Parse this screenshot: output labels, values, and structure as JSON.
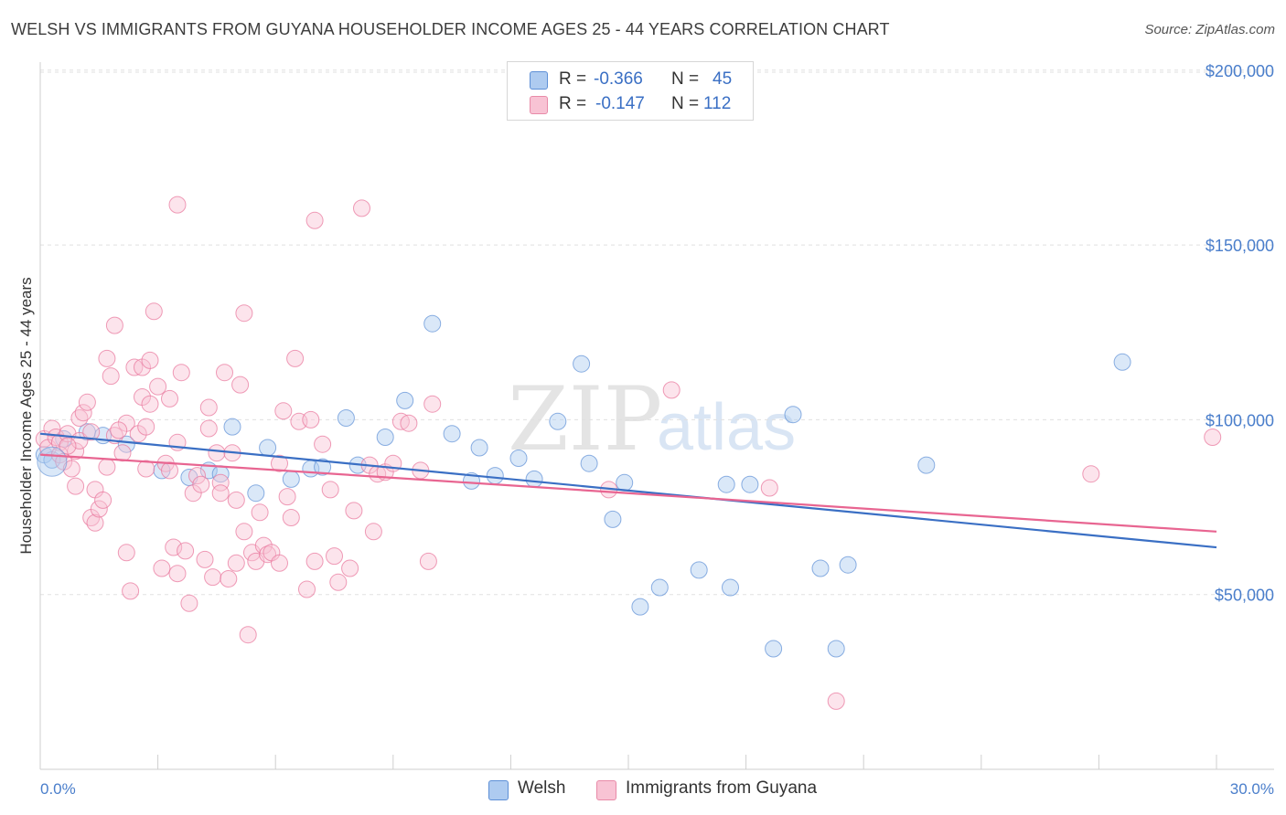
{
  "title": "WELSH VS IMMIGRANTS FROM GUYANA HOUSEHOLDER INCOME AGES 25 - 44 YEARS CORRELATION CHART",
  "source": "Source: ZipAtlas.com",
  "watermark": {
    "zip": "ZIP",
    "atlas": "atlas"
  },
  "legend": {
    "r_label": "R =",
    "n_label": "N =",
    "rows": [
      {
        "r": "-0.366",
        "n": "45",
        "color": "#aecbf0",
        "border": "#5d8fd6"
      },
      {
        "r": "-0.147",
        "n": "112",
        "color": "#f8c3d4",
        "border": "#e88aa8"
      }
    ]
  },
  "bottom_legend": [
    {
      "label": "Welsh",
      "color": "#aecbf0",
      "border": "#5d8fd6"
    },
    {
      "label": "Immigrants from Guyana",
      "color": "#f8c3d4",
      "border": "#e88aa8"
    }
  ],
  "chart_data": {
    "type": "scatter",
    "title": "WELSH VS IMMIGRANTS FROM GUYANA HOUSEHOLDER INCOME AGES 25 - 44 YEARS CORRELATION CHART",
    "xlabel": "",
    "ylabel": "Householder Income Ages 25 - 44 years",
    "xlim": [
      0,
      30
    ],
    "ylim": [
      0,
      210000
    ],
    "x_tick_labels": [
      "0.0%",
      "30.0%"
    ],
    "y_ticks": [
      50000,
      100000,
      150000,
      200000
    ],
    "y_tick_labels": [
      "$50,000",
      "$100,000",
      "$150,000",
      "$200,000"
    ],
    "grid": true,
    "legend_position": "top-center",
    "series": [
      {
        "name": "Welsh",
        "color": "#5d8fd6",
        "fill": "#aecbf0",
        "trend": {
          "x": [
            0,
            30
          ],
          "y": [
            96000,
            63500
          ]
        },
        "points": [
          [
            0.1,
            90000
          ],
          [
            0.3,
            88500
          ],
          [
            0.6,
            94500
          ],
          [
            1.2,
            96500
          ],
          [
            1.6,
            95500
          ],
          [
            2.2,
            93000
          ],
          [
            3.1,
            85500
          ],
          [
            3.8,
            83500
          ],
          [
            4.3,
            85500
          ],
          [
            4.6,
            84500
          ],
          [
            4.9,
            98000
          ],
          [
            5.5,
            79000
          ],
          [
            5.8,
            92000
          ],
          [
            6.4,
            83000
          ],
          [
            6.9,
            86000
          ],
          [
            7.2,
            86500
          ],
          [
            8.1,
            87000
          ],
          [
            7.8,
            100500
          ],
          [
            8.8,
            95000
          ],
          [
            9.3,
            105500
          ],
          [
            10.0,
            127500
          ],
          [
            10.5,
            96000
          ],
          [
            11.0,
            82500
          ],
          [
            11.2,
            92000
          ],
          [
            11.6,
            84000
          ],
          [
            12.2,
            89000
          ],
          [
            12.6,
            83000
          ],
          [
            13.2,
            99500
          ],
          [
            13.8,
            116000
          ],
          [
            14.0,
            87500
          ],
          [
            14.6,
            71500
          ],
          [
            14.9,
            82000
          ],
          [
            15.3,
            46500
          ],
          [
            15.8,
            52000
          ],
          [
            16.8,
            57000
          ],
          [
            17.6,
            52000
          ],
          [
            17.5,
            81500
          ],
          [
            18.1,
            81500
          ],
          [
            18.7,
            34500
          ],
          [
            19.2,
            101500
          ],
          [
            19.9,
            57500
          ],
          [
            20.3,
            34500
          ],
          [
            20.6,
            58500
          ],
          [
            22.6,
            87000
          ],
          [
            27.6,
            116500
          ]
        ]
      },
      {
        "name": "Immigrants from Guyana",
        "color": "#e8739a",
        "fill": "#f8c3d4",
        "trend": {
          "x": [
            0,
            30
          ],
          "y": [
            90000,
            68000
          ]
        },
        "points": [
          [
            0.1,
            94500
          ],
          [
            0.2,
            92000
          ],
          [
            0.3,
            97500
          ],
          [
            0.4,
            95000
          ],
          [
            0.5,
            93500
          ],
          [
            0.5,
            90000
          ],
          [
            0.6,
            88000
          ],
          [
            0.7,
            96000
          ],
          [
            0.8,
            86000
          ],
          [
            0.9,
            91000
          ],
          [
            0.9,
            81000
          ],
          [
            1.0,
            100500
          ],
          [
            1.0,
            94000
          ],
          [
            1.1,
            102000
          ],
          [
            1.2,
            105000
          ],
          [
            1.3,
            72000
          ],
          [
            1.4,
            80000
          ],
          [
            1.4,
            70500
          ],
          [
            1.5,
            74500
          ],
          [
            1.6,
            77000
          ],
          [
            1.7,
            117500
          ],
          [
            1.7,
            86500
          ],
          [
            1.8,
            112500
          ],
          [
            1.9,
            127000
          ],
          [
            1.9,
            95500
          ],
          [
            2.1,
            90500
          ],
          [
            2.2,
            99000
          ],
          [
            2.2,
            62000
          ],
          [
            2.3,
            51000
          ],
          [
            2.4,
            115000
          ],
          [
            2.5,
            96000
          ],
          [
            2.6,
            115000
          ],
          [
            2.6,
            106500
          ],
          [
            2.7,
            98000
          ],
          [
            2.8,
            104500
          ],
          [
            2.8,
            117000
          ],
          [
            2.9,
            131000
          ],
          [
            3.0,
            109500
          ],
          [
            3.1,
            57500
          ],
          [
            3.2,
            87500
          ],
          [
            3.3,
            85500
          ],
          [
            3.3,
            106000
          ],
          [
            3.4,
            63500
          ],
          [
            3.5,
            56000
          ],
          [
            3.5,
            161500
          ],
          [
            3.6,
            113500
          ],
          [
            3.7,
            62500
          ],
          [
            3.8,
            47500
          ],
          [
            3.9,
            79000
          ],
          [
            4.0,
            84000
          ],
          [
            4.1,
            81500
          ],
          [
            4.2,
            60000
          ],
          [
            4.3,
            97500
          ],
          [
            4.3,
            103500
          ],
          [
            4.4,
            55000
          ],
          [
            4.5,
            90500
          ],
          [
            4.6,
            82000
          ],
          [
            4.6,
            79000
          ],
          [
            4.7,
            113500
          ],
          [
            4.8,
            54500
          ],
          [
            4.9,
            90500
          ],
          [
            5.0,
            77000
          ],
          [
            5.0,
            59000
          ],
          [
            5.1,
            110000
          ],
          [
            5.2,
            130500
          ],
          [
            5.2,
            68000
          ],
          [
            5.3,
            38500
          ],
          [
            5.4,
            62000
          ],
          [
            5.5,
            59500
          ],
          [
            5.6,
            73500
          ],
          [
            5.7,
            64000
          ],
          [
            5.8,
            61500
          ],
          [
            5.9,
            62000
          ],
          [
            6.1,
            59000
          ],
          [
            6.1,
            87500
          ],
          [
            6.2,
            102500
          ],
          [
            6.3,
            78000
          ],
          [
            6.4,
            72000
          ],
          [
            6.5,
            117500
          ],
          [
            6.6,
            99500
          ],
          [
            6.8,
            51500
          ],
          [
            6.9,
            100000
          ],
          [
            7.0,
            59500
          ],
          [
            7.0,
            157000
          ],
          [
            7.2,
            93000
          ],
          [
            7.4,
            80000
          ],
          [
            7.5,
            61000
          ],
          [
            7.6,
            53500
          ],
          [
            7.9,
            57500
          ],
          [
            8.0,
            74000
          ],
          [
            8.2,
            160500
          ],
          [
            8.4,
            87000
          ],
          [
            8.5,
            68000
          ],
          [
            8.6,
            84500
          ],
          [
            8.8,
            85000
          ],
          [
            9.0,
            87500
          ],
          [
            9.2,
            99500
          ],
          [
            9.4,
            99000
          ],
          [
            9.7,
            85500
          ],
          [
            9.9,
            59500
          ],
          [
            10.0,
            104500
          ],
          [
            14.5,
            80000
          ],
          [
            16.1,
            108500
          ],
          [
            18.6,
            80500
          ],
          [
            20.3,
            19500
          ],
          [
            26.8,
            84500
          ],
          [
            29.9,
            95000
          ],
          [
            1.3,
            96500
          ],
          [
            0.7,
            92500
          ],
          [
            2.0,
            97000
          ],
          [
            2.7,
            86000
          ],
          [
            3.5,
            93500
          ]
        ]
      }
    ]
  }
}
